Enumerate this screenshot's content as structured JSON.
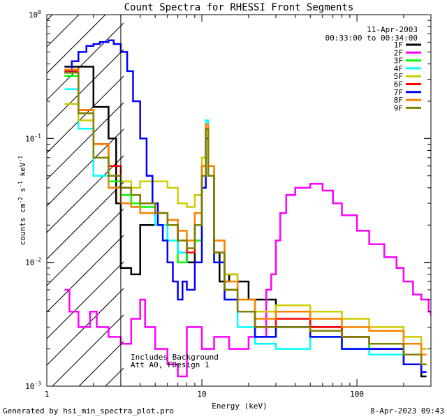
{
  "chart_data": {
    "type": "line",
    "title": "Count Spectra for RHESSI Front Segments",
    "xlabel": "Energy (keV)",
    "ylabel_parts": {
      "base": "counts cm",
      "exp1": "-2",
      "s": " s",
      "exp2": "-1",
      "kev": " keV",
      "exp3": "-1"
    },
    "xscale": "log",
    "yscale": "log",
    "xlim": [
      1,
      300
    ],
    "ylim": [
      0.001,
      1
    ],
    "x_ticks": [
      {
        "v": 1,
        "label": "1"
      },
      {
        "v": 10,
        "label": "10"
      },
      {
        "v": 100,
        "label": "100"
      }
    ],
    "y_ticks": [
      {
        "v": 1,
        "base": "10",
        "exp": "0"
      },
      {
        "v": 0.1,
        "base": "10",
        "exp": "-1"
      },
      {
        "v": 0.01,
        "base": "10",
        "exp": "-2"
      },
      {
        "v": 0.001,
        "base": "10",
        "exp": "-3"
      }
    ],
    "date": "11-Apr-2003",
    "time_range": "00:33:00 to 00:34:00",
    "hatched_region_upper_keV": 3,
    "annotations": [
      "Includes Background",
      "Att A0, FDesign 1"
    ],
    "legend_position": "top-right",
    "series": [
      {
        "name": "1F",
        "color": "#000000",
        "points": [
          [
            1.3,
            0.38
          ],
          [
            2,
            0.18
          ],
          [
            2.5,
            0.1
          ],
          [
            2.8,
            0.03
          ],
          [
            3,
            0.009
          ],
          [
            3.5,
            0.008
          ],
          [
            4,
            0.02
          ],
          [
            5,
            0.025
          ],
          [
            6,
            0.02
          ],
          [
            7,
            0.012
          ],
          [
            8,
            0.01
          ],
          [
            9,
            0.02
          ],
          [
            10,
            0.06
          ],
          [
            10.6,
            0.12
          ],
          [
            11,
            0.05
          ],
          [
            12,
            0.012
          ],
          [
            13,
            0.007
          ],
          [
            15,
            0.008
          ],
          [
            17,
            0.007
          ],
          [
            20,
            0.005
          ],
          [
            30,
            0.004
          ],
          [
            50,
            0.003
          ],
          [
            80,
            0.0025
          ],
          [
            120,
            0.002
          ],
          [
            200,
            0.0015
          ],
          [
            260,
            0.0012
          ]
        ]
      },
      {
        "name": "2F",
        "color": "#ff00ff",
        "points": [
          [
            1.3,
            0.006
          ],
          [
            1.4,
            0.004
          ],
          [
            1.6,
            0.003
          ],
          [
            1.9,
            0.004
          ],
          [
            2.1,
            0.003
          ],
          [
            2.5,
            0.0025
          ],
          [
            3,
            0.0022
          ],
          [
            3.5,
            0.0035
          ],
          [
            4,
            0.005
          ],
          [
            4.3,
            0.003
          ],
          [
            5,
            0.002
          ],
          [
            6,
            0.0015
          ],
          [
            7,
            0.0012
          ],
          [
            8,
            0.003
          ],
          [
            10,
            0.002
          ],
          [
            12,
            0.0025
          ],
          [
            15,
            0.002
          ],
          [
            20,
            0.0025
          ],
          [
            26,
            0.006
          ],
          [
            28,
            0.008
          ],
          [
            30,
            0.015
          ],
          [
            32,
            0.025
          ],
          [
            35,
            0.035
          ],
          [
            40,
            0.04
          ],
          [
            50,
            0.043
          ],
          [
            60,
            0.038
          ],
          [
            70,
            0.03
          ],
          [
            80,
            0.024
          ],
          [
            100,
            0.018
          ],
          [
            120,
            0.014
          ],
          [
            150,
            0.011
          ],
          [
            180,
            0.009
          ],
          [
            200,
            0.007
          ],
          [
            230,
            0.0055
          ],
          [
            260,
            0.005
          ],
          [
            290,
            0.004
          ],
          [
            300,
            0.0038
          ]
        ]
      },
      {
        "name": "3F",
        "color": "#00ff00",
        "points": [
          [
            1.3,
            0.32
          ],
          [
            1.6,
            0.16
          ],
          [
            2,
            0.07
          ],
          [
            2.5,
            0.045
          ],
          [
            3,
            0.035
          ],
          [
            3.5,
            0.03
          ],
          [
            4,
            0.028
          ],
          [
            5,
            0.02
          ],
          [
            6,
            0.015
          ],
          [
            7,
            0.01
          ],
          [
            8,
            0.012
          ],
          [
            9,
            0.015
          ],
          [
            10,
            0.04
          ],
          [
            10.6,
            0.1
          ],
          [
            11,
            0.05
          ],
          [
            12,
            0.01
          ],
          [
            14,
            0.006
          ],
          [
            17,
            0.004
          ],
          [
            22,
            0.0025
          ],
          [
            30,
            0.003
          ],
          [
            50,
            0.0025
          ],
          [
            80,
            0.002
          ],
          [
            120,
            0.0022
          ],
          [
            200,
            0.0018
          ],
          [
            260,
            0.0015
          ]
        ]
      },
      {
        "name": "4F",
        "color": "#00ffff",
        "points": [
          [
            1.3,
            0.25
          ],
          [
            1.6,
            0.12
          ],
          [
            2,
            0.05
          ],
          [
            2.5,
            0.04
          ],
          [
            3,
            0.03
          ],
          [
            3.5,
            0.028
          ],
          [
            4,
            0.025
          ],
          [
            5,
            0.02
          ],
          [
            6,
            0.015
          ],
          [
            7,
            0.012
          ],
          [
            8,
            0.012
          ],
          [
            9,
            0.02
          ],
          [
            10,
            0.06
          ],
          [
            10.6,
            0.14
          ],
          [
            11,
            0.06
          ],
          [
            12,
            0.01
          ],
          [
            14,
            0.005
          ],
          [
            17,
            0.003
          ],
          [
            22,
            0.0022
          ],
          [
            30,
            0.002
          ],
          [
            50,
            0.0025
          ],
          [
            80,
            0.002
          ],
          [
            120,
            0.0018
          ],
          [
            200,
            0.0015
          ],
          [
            260,
            0.0013
          ]
        ]
      },
      {
        "name": "5F",
        "color": "#cccc00",
        "points": [
          [
            1.3,
            0.19
          ],
          [
            1.6,
            0.14
          ],
          [
            2,
            0.09
          ],
          [
            2.5,
            0.06
          ],
          [
            3,
            0.045
          ],
          [
            3.5,
            0.04
          ],
          [
            4,
            0.045
          ],
          [
            5,
            0.045
          ],
          [
            6,
            0.04
          ],
          [
            7,
            0.03
          ],
          [
            8,
            0.028
          ],
          [
            9,
            0.035
          ],
          [
            10,
            0.07
          ],
          [
            10.6,
            0.12
          ],
          [
            11,
            0.06
          ],
          [
            12,
            0.015
          ],
          [
            14,
            0.008
          ],
          [
            17,
            0.005
          ],
          [
            22,
            0.004
          ],
          [
            30,
            0.0045
          ],
          [
            50,
            0.004
          ],
          [
            80,
            0.0035
          ],
          [
            120,
            0.003
          ],
          [
            200,
            0.0025
          ],
          [
            260,
            0.002
          ]
        ]
      },
      {
        "name": "6F",
        "color": "#ff0000",
        "points": [
          [
            1.3,
            0.35
          ],
          [
            1.6,
            0.17
          ],
          [
            2,
            0.09
          ],
          [
            2.5,
            0.06
          ],
          [
            3,
            0.04
          ],
          [
            3.5,
            0.035
          ],
          [
            4,
            0.03
          ],
          [
            5,
            0.025
          ],
          [
            6,
            0.02
          ],
          [
            7,
            0.015
          ],
          [
            8,
            0.012
          ],
          [
            9,
            0.02
          ],
          [
            10,
            0.05
          ],
          [
            10.6,
            0.12
          ],
          [
            11,
            0.05
          ],
          [
            12,
            0.012
          ],
          [
            14,
            0.006
          ],
          [
            17,
            0.004
          ],
          [
            22,
            0.003
          ],
          [
            30,
            0.0035
          ],
          [
            50,
            0.003
          ],
          [
            80,
            0.0025
          ],
          [
            120,
            0.0022
          ],
          [
            200,
            0.0018
          ],
          [
            260,
            0.0015
          ]
        ]
      },
      {
        "name": "7F",
        "color": "#0000ff",
        "points": [
          [
            1.3,
            0.34
          ],
          [
            1.45,
            0.42
          ],
          [
            1.6,
            0.5
          ],
          [
            1.8,
            0.56
          ],
          [
            2,
            0.58
          ],
          [
            2.2,
            0.6
          ],
          [
            2.5,
            0.62
          ],
          [
            2.7,
            0.58
          ],
          [
            3,
            0.5
          ],
          [
            3.3,
            0.35
          ],
          [
            3.6,
            0.2
          ],
          [
            4,
            0.1
          ],
          [
            4.4,
            0.05
          ],
          [
            4.8,
            0.03
          ],
          [
            5.2,
            0.02
          ],
          [
            5.6,
            0.015
          ],
          [
            6,
            0.01
          ],
          [
            6.5,
            0.007
          ],
          [
            7,
            0.005
          ],
          [
            7.5,
            0.007
          ],
          [
            8,
            0.006
          ],
          [
            9,
            0.01
          ],
          [
            10,
            0.04
          ],
          [
            10.6,
            0.1
          ],
          [
            11,
            0.05
          ],
          [
            12,
            0.01
          ],
          [
            14,
            0.005
          ],
          [
            17,
            0.004
          ],
          [
            22,
            0.0025
          ],
          [
            30,
            0.003
          ],
          [
            50,
            0.0025
          ],
          [
            80,
            0.002
          ],
          [
            120,
            0.002
          ],
          [
            200,
            0.0015
          ],
          [
            260,
            0.0013
          ]
        ]
      },
      {
        "name": "8F",
        "color": "#ff8000",
        "points": [
          [
            1.3,
            0.36
          ],
          [
            1.6,
            0.17
          ],
          [
            2,
            0.09
          ],
          [
            2.5,
            0.04
          ],
          [
            3,
            0.03
          ],
          [
            3.5,
            0.028
          ],
          [
            4,
            0.025
          ],
          [
            5,
            0.025
          ],
          [
            6,
            0.022
          ],
          [
            7,
            0.018
          ],
          [
            8,
            0.015
          ],
          [
            9,
            0.025
          ],
          [
            10,
            0.06
          ],
          [
            10.6,
            0.13
          ],
          [
            11,
            0.06
          ],
          [
            12,
            0.015
          ],
          [
            14,
            0.007
          ],
          [
            17,
            0.005
          ],
          [
            22,
            0.0035
          ],
          [
            30,
            0.004
          ],
          [
            50,
            0.0035
          ],
          [
            80,
            0.003
          ],
          [
            120,
            0.0028
          ],
          [
            200,
            0.0022
          ],
          [
            260,
            0.0018
          ]
        ]
      },
      {
        "name": "9F",
        "color": "#808000",
        "points": [
          [
            1.3,
            0.34
          ],
          [
            1.6,
            0.16
          ],
          [
            2,
            0.07
          ],
          [
            2.5,
            0.05
          ],
          [
            3,
            0.04
          ],
          [
            3.5,
            0.035
          ],
          [
            4,
            0.03
          ],
          [
            5,
            0.025
          ],
          [
            6,
            0.02
          ],
          [
            7,
            0.015
          ],
          [
            8,
            0.013
          ],
          [
            9,
            0.02
          ],
          [
            10,
            0.05
          ],
          [
            10.6,
            0.12
          ],
          [
            11,
            0.05
          ],
          [
            12,
            0.012
          ],
          [
            14,
            0.006
          ],
          [
            17,
            0.004
          ],
          [
            22,
            0.003
          ],
          [
            30,
            0.003
          ],
          [
            50,
            0.0028
          ],
          [
            80,
            0.0025
          ],
          [
            120,
            0.0022
          ],
          [
            200,
            0.0018
          ],
          [
            260,
            0.0015
          ]
        ]
      }
    ]
  },
  "footer": {
    "left": "Generated by hsi_min_spectra_plot.pro",
    "right": "8-Apr-2023 09:43"
  }
}
